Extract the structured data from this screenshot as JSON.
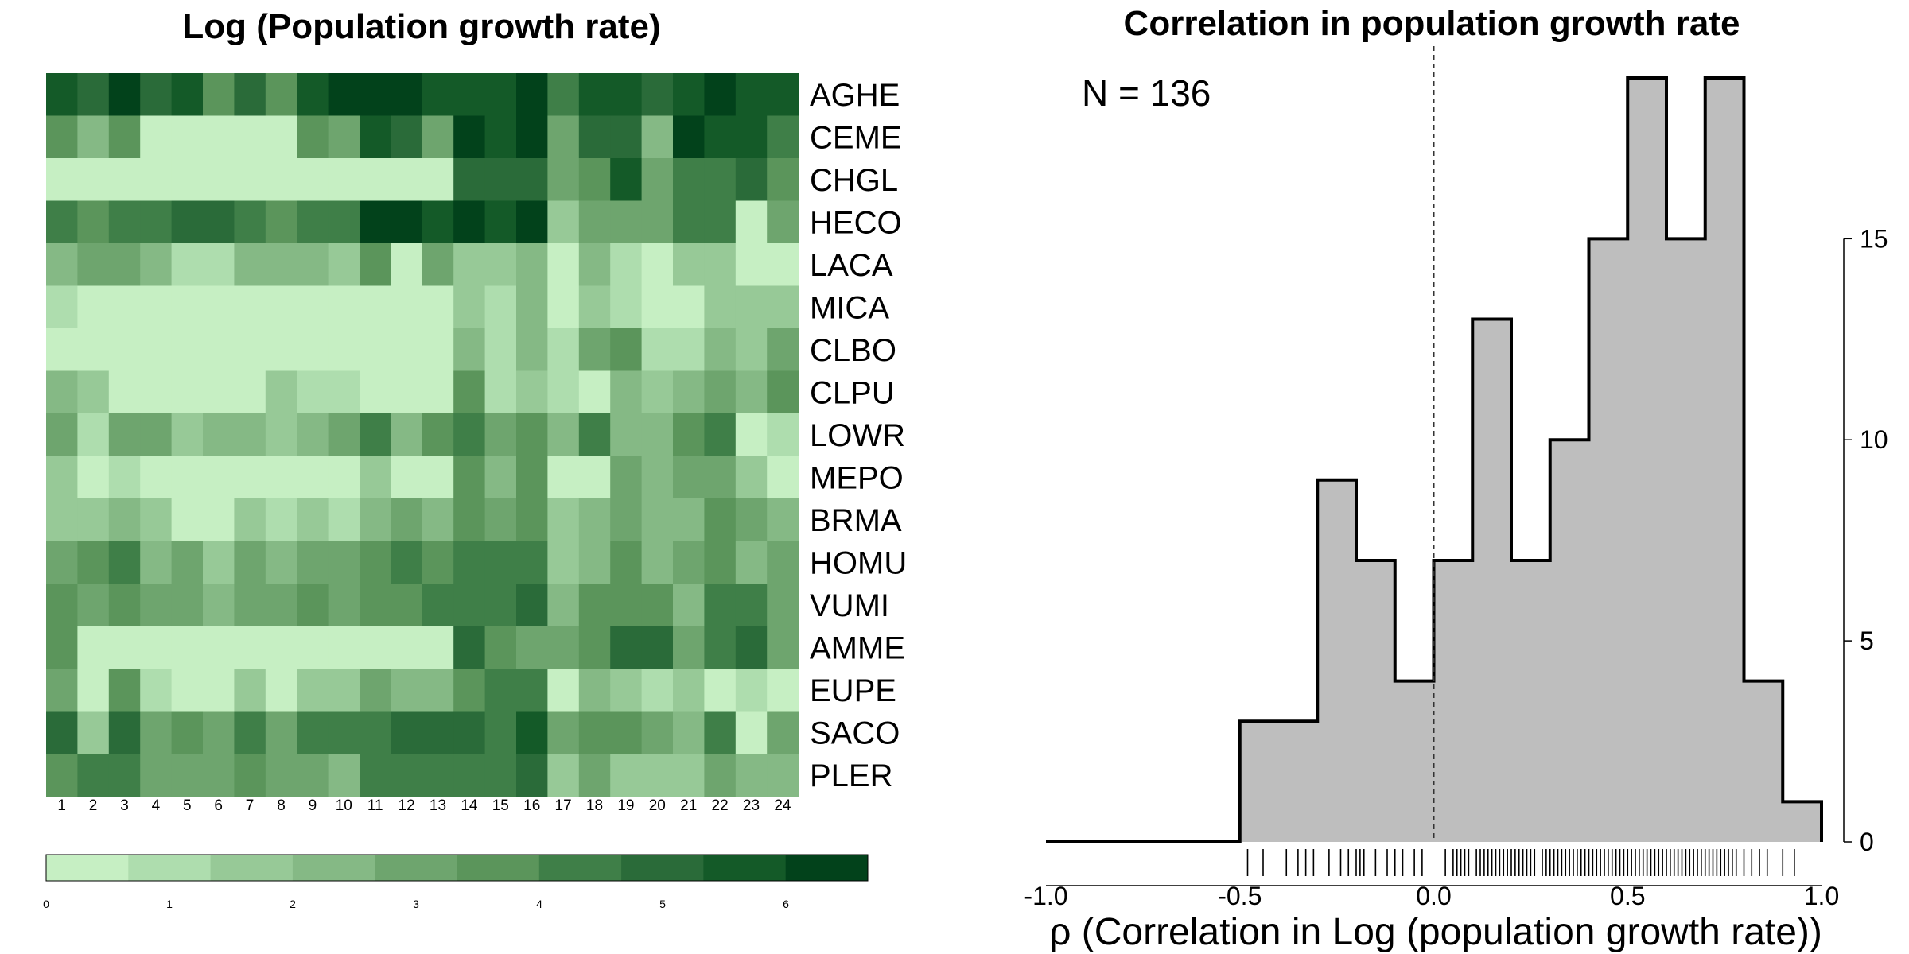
{
  "chart_data": [
    {
      "type": "heatmap",
      "title": "Log (Population growth rate)",
      "rows": [
        "AGHE",
        "CEME",
        "CHGL",
        "HECO",
        "LACA",
        "MICA",
        "CLBO",
        "CLPU",
        "LOWR",
        "MEPO",
        "BRMA",
        "HOMU",
        "VUMI",
        "AMME",
        "EUPE",
        "SACO",
        "PLER"
      ],
      "columns": [
        "1",
        "2",
        "3",
        "4",
        "5",
        "6",
        "7",
        "8",
        "9",
        "10",
        "11",
        "12",
        "13",
        "14",
        "15",
        "16",
        "17",
        "18",
        "19",
        "20",
        "21",
        "22",
        "23",
        "24"
      ],
      "palette": [
        "#c6efc3",
        "#aeddae",
        "#97c997",
        "#85b985",
        "#6ea56e",
        "#5b955b",
        "#3f7f48",
        "#2a6b39",
        "#145a28",
        "#02421b"
      ],
      "legend_ticks": [
        "0",
        "1",
        "2",
        "3",
        "4",
        "5",
        "6"
      ],
      "levels": [
        [
          8,
          7,
          9,
          7,
          8,
          5,
          7,
          5,
          8,
          9,
          9,
          9,
          8,
          8,
          8,
          9,
          6,
          8,
          8,
          7,
          8,
          9,
          8,
          8
        ],
        [
          5,
          3,
          5,
          0,
          0,
          0,
          0,
          0,
          5,
          4,
          8,
          7,
          4,
          9,
          8,
          9,
          4,
          7,
          7,
          3,
          9,
          8,
          8,
          6
        ],
        [
          0,
          0,
          0,
          0,
          0,
          0,
          0,
          0,
          0,
          0,
          0,
          0,
          0,
          7,
          7,
          7,
          4,
          5,
          8,
          4,
          6,
          6,
          7,
          5
        ],
        [
          6,
          5,
          6,
          6,
          7,
          7,
          6,
          5,
          6,
          6,
          9,
          9,
          8,
          9,
          8,
          9,
          2,
          4,
          4,
          4,
          6,
          6,
          0,
          4
        ],
        [
          3,
          4,
          4,
          3,
          1,
          1,
          3,
          3,
          3,
          2,
          5,
          0,
          4,
          2,
          2,
          3,
          0,
          3,
          1,
          0,
          2,
          2,
          0,
          0
        ],
        [
          1,
          0,
          0,
          0,
          0,
          0,
          0,
          0,
          0,
          0,
          0,
          0,
          0,
          2,
          1,
          3,
          0,
          2,
          1,
          0,
          0,
          2,
          2,
          2
        ],
        [
          0,
          0,
          0,
          0,
          0,
          0,
          0,
          0,
          0,
          0,
          0,
          0,
          0,
          3,
          1,
          3,
          1,
          4,
          5,
          1,
          1,
          3,
          2,
          4
        ],
        [
          3,
          2,
          0,
          0,
          0,
          0,
          0,
          2,
          1,
          1,
          0,
          0,
          0,
          5,
          1,
          2,
          1,
          0,
          3,
          2,
          3,
          4,
          3,
          5
        ],
        [
          4,
          1,
          4,
          4,
          2,
          3,
          3,
          2,
          3,
          4,
          6,
          3,
          5,
          6,
          4,
          5,
          3,
          6,
          3,
          3,
          5,
          6,
          0,
          1
        ],
        [
          2,
          0,
          1,
          0,
          0,
          0,
          0,
          0,
          0,
          0,
          2,
          0,
          0,
          5,
          3,
          5,
          0,
          0,
          4,
          3,
          4,
          4,
          2,
          0
        ],
        [
          2,
          2,
          3,
          2,
          0,
          0,
          2,
          1,
          2,
          1,
          3,
          4,
          3,
          5,
          4,
          5,
          2,
          3,
          4,
          3,
          3,
          5,
          4,
          3
        ],
        [
          4,
          5,
          6,
          3,
          4,
          2,
          4,
          3,
          4,
          4,
          5,
          6,
          5,
          6,
          6,
          6,
          2,
          3,
          5,
          3,
          4,
          5,
          3,
          4
        ],
        [
          5,
          4,
          5,
          4,
          4,
          3,
          4,
          4,
          5,
          4,
          5,
          5,
          6,
          6,
          6,
          7,
          3,
          5,
          5,
          5,
          3,
          6,
          6,
          4
        ],
        [
          5,
          0,
          0,
          0,
          0,
          0,
          0,
          0,
          0,
          0,
          0,
          0,
          0,
          7,
          5,
          4,
          4,
          5,
          7,
          7,
          4,
          6,
          7,
          4
        ],
        [
          4,
          0,
          5,
          1,
          0,
          0,
          2,
          0,
          2,
          2,
          4,
          3,
          3,
          5,
          6,
          6,
          0,
          3,
          2,
          1,
          2,
          0,
          1,
          0
        ],
        [
          7,
          2,
          7,
          4,
          5,
          4,
          6,
          4,
          6,
          6,
          6,
          7,
          7,
          7,
          6,
          8,
          4,
          5,
          5,
          4,
          3,
          6,
          0,
          4
        ],
        [
          5,
          6,
          6,
          4,
          4,
          4,
          5,
          4,
          4,
          3,
          6,
          6,
          6,
          6,
          6,
          7,
          2,
          4,
          2,
          2,
          2,
          4,
          3,
          3
        ]
      ]
    },
    {
      "type": "histogram",
      "title": "Correlation in population growth rate",
      "xlabel": "ρ (Correlation in Log (population growth rate))",
      "annotation": "N = 136",
      "xlim": [
        -1.0,
        1.0
      ],
      "ylim": [
        0,
        19
      ],
      "x_ticks": [
        "-1.0",
        "-0.5",
        "0.0",
        "0.5",
        "1.0"
      ],
      "y_ticks": [
        "0",
        "5",
        "10",
        "15"
      ],
      "reference_line_x": 0.0,
      "bins": [
        {
          "x0": -0.5,
          "x1": -0.4,
          "count": 3
        },
        {
          "x0": -0.4,
          "x1": -0.3,
          "count": 3
        },
        {
          "x0": -0.3,
          "x1": -0.2,
          "count": 9
        },
        {
          "x0": -0.2,
          "x1": -0.1,
          "count": 7
        },
        {
          "x0": -0.1,
          "x1": 0.0,
          "count": 4
        },
        {
          "x0": 0.0,
          "x1": 0.1,
          "count": 7
        },
        {
          "x0": 0.1,
          "x1": 0.2,
          "count": 13
        },
        {
          "x0": 0.2,
          "x1": 0.3,
          "count": 7
        },
        {
          "x0": 0.3,
          "x1": 0.4,
          "count": 10
        },
        {
          "x0": 0.4,
          "x1": 0.5,
          "count": 15
        },
        {
          "x0": 0.5,
          "x1": 0.6,
          "count": 19
        },
        {
          "x0": 0.6,
          "x1": 0.7,
          "count": 15
        },
        {
          "x0": 0.7,
          "x1": 0.8,
          "count": 19
        },
        {
          "x0": 0.8,
          "x1": 0.9,
          "count": 4
        },
        {
          "x0": 0.9,
          "x1": 1.0,
          "count": 1
        }
      ],
      "rug": [
        -0.48,
        -0.44,
        -0.38,
        -0.35,
        -0.33,
        -0.31,
        -0.27,
        -0.24,
        -0.22,
        -0.2,
        -0.19,
        -0.18,
        -0.15,
        -0.12,
        -0.1,
        -0.08,
        -0.05,
        -0.03,
        0.03,
        0.05,
        0.06,
        0.07,
        0.08,
        0.09,
        0.11,
        0.12,
        0.13,
        0.14,
        0.15,
        0.16,
        0.17,
        0.18,
        0.19,
        0.2,
        0.21,
        0.22,
        0.23,
        0.24,
        0.25,
        0.26,
        0.28,
        0.29,
        0.3,
        0.31,
        0.32,
        0.33,
        0.34,
        0.35,
        0.36,
        0.37,
        0.38,
        0.39,
        0.4,
        0.41,
        0.42,
        0.43,
        0.44,
        0.45,
        0.46,
        0.47,
        0.48,
        0.49,
        0.5,
        0.51,
        0.52,
        0.53,
        0.54,
        0.55,
        0.56,
        0.57,
        0.58,
        0.59,
        0.6,
        0.61,
        0.62,
        0.63,
        0.64,
        0.65,
        0.66,
        0.67,
        0.68,
        0.69,
        0.7,
        0.71,
        0.72,
        0.73,
        0.74,
        0.75,
        0.76,
        0.77,
        0.78,
        0.8,
        0.82,
        0.84,
        0.86,
        0.9,
        0.93
      ]
    }
  ]
}
